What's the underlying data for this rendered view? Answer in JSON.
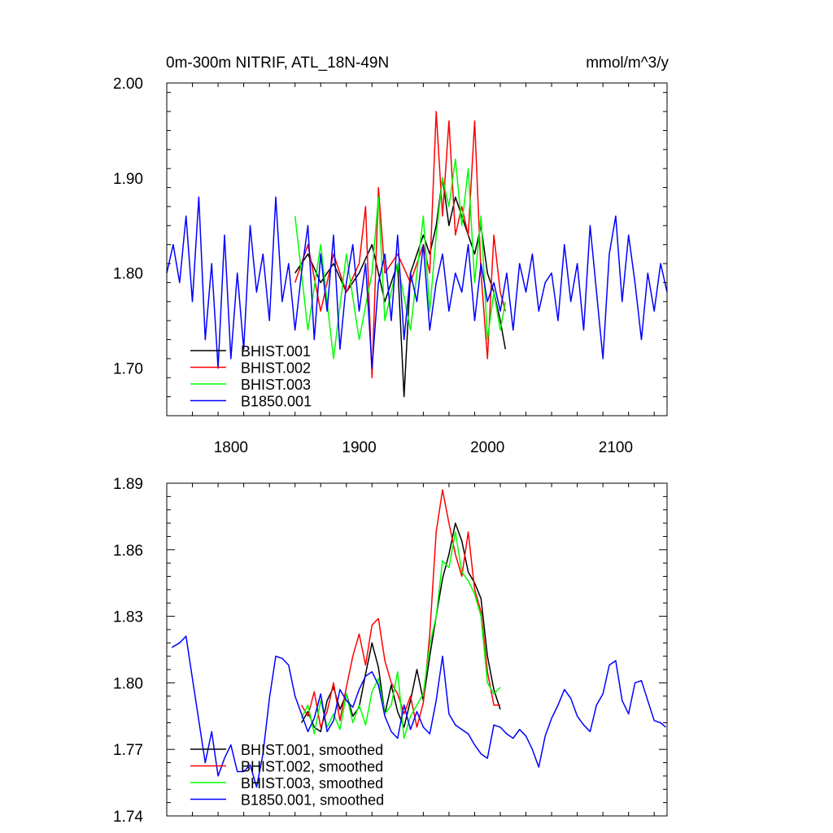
{
  "title_left": "0m-300m NITRIF, ATL_18N-49N",
  "title_right": "mmol/m^3/y",
  "colors": {
    "BHIST.001": "#000000",
    "BHIST.002": "#ff0000",
    "BHIST.003": "#00ff00",
    "B1850.001": "#0000ff"
  },
  "chart_data": [
    {
      "type": "line",
      "title": "0m-300m NITRIF, ATL_18N-49N",
      "units": "mmol/m^3/y",
      "xlim": [
        1750,
        2140
      ],
      "ylim": [
        1.65,
        2.0
      ],
      "x_ticks": [
        1800,
        1900,
        2000,
        2100
      ],
      "x_tick_labels": [
        "1800",
        "1900",
        "2000",
        "2100"
      ],
      "y_ticks": [
        1.7,
        1.8,
        1.9,
        2.0
      ],
      "y_tick_labels": [
        "1.70",
        "1.80",
        "1.90",
        "2.00"
      ],
      "legend": [
        "BHIST.001",
        "BHIST.002",
        "BHIST.003",
        "B1850.001"
      ],
      "legend_position": "bottom-left",
      "series": [
        {
          "name": "BHIST.001",
          "color": "#000000",
          "x": [
            1850,
            1860,
            1870,
            1880,
            1890,
            1900,
            1910,
            1920,
            1930,
            1935,
            1940,
            1950,
            1955,
            1960,
            1965,
            1970,
            1975,
            1980,
            1985,
            1990,
            1995,
            2000,
            2005,
            2010,
            2014
          ],
          "y": [
            1.8,
            1.82,
            1.79,
            1.81,
            1.78,
            1.8,
            1.83,
            1.77,
            1.81,
            1.67,
            1.8,
            1.84,
            1.82,
            1.85,
            1.9,
            1.85,
            1.88,
            1.86,
            1.84,
            1.82,
            1.85,
            1.8,
            1.78,
            1.75,
            1.72
          ]
        },
        {
          "name": "BHIST.002",
          "color": "#ff0000",
          "x": [
            1850,
            1860,
            1870,
            1880,
            1890,
            1900,
            1905,
            1910,
            1915,
            1920,
            1930,
            1940,
            1950,
            1955,
            1960,
            1965,
            1970,
            1975,
            1980,
            1985,
            1990,
            1995,
            2000,
            2005,
            2010,
            2014
          ],
          "y": [
            1.79,
            1.83,
            1.76,
            1.82,
            1.78,
            1.81,
            1.87,
            1.69,
            1.89,
            1.8,
            1.82,
            1.79,
            1.83,
            1.8,
            1.97,
            1.86,
            1.96,
            1.84,
            1.87,
            1.84,
            1.96,
            1.8,
            1.71,
            1.84,
            1.78,
            1.76
          ]
        },
        {
          "name": "BHIST.003",
          "color": "#00ff00",
          "x": [
            1850,
            1860,
            1870,
            1880,
            1890,
            1900,
            1910,
            1915,
            1920,
            1930,
            1940,
            1950,
            1955,
            1960,
            1965,
            1970,
            1975,
            1980,
            1985,
            1990,
            1995,
            2000,
            2005,
            2010,
            2014
          ],
          "y": [
            1.86,
            1.74,
            1.83,
            1.71,
            1.82,
            1.73,
            1.8,
            1.88,
            1.75,
            1.81,
            1.74,
            1.86,
            1.76,
            1.84,
            1.9,
            1.87,
            1.92,
            1.85,
            1.91,
            1.79,
            1.86,
            1.73,
            1.78,
            1.74,
            1.77
          ]
        },
        {
          "name": "B1850.001",
          "color": "#0000ff",
          "x": [
            1750,
            1755,
            1760,
            1765,
            1770,
            1775,
            1780,
            1785,
            1790,
            1795,
            1800,
            1805,
            1810,
            1815,
            1820,
            1825,
            1830,
            1835,
            1840,
            1845,
            1850,
            1855,
            1860,
            1865,
            1870,
            1875,
            1880,
            1885,
            1890,
            1895,
            1900,
            1905,
            1910,
            1915,
            1920,
            1925,
            1930,
            1935,
            1940,
            1945,
            1950,
            1955,
            1960,
            1965,
            1970,
            1975,
            1980,
            1985,
            1990,
            1995,
            2000,
            2005,
            2010,
            2015,
            2020,
            2025,
            2030,
            2035,
            2040,
            2045,
            2050,
            2055,
            2060,
            2065,
            2070,
            2075,
            2080,
            2085,
            2090,
            2095,
            2100,
            2105,
            2110,
            2115,
            2120,
            2125,
            2130,
            2135,
            2140
          ],
          "y": [
            1.8,
            1.83,
            1.79,
            1.86,
            1.77,
            1.88,
            1.73,
            1.81,
            1.7,
            1.84,
            1.71,
            1.8,
            1.72,
            1.85,
            1.78,
            1.82,
            1.75,
            1.88,
            1.77,
            1.81,
            1.74,
            1.8,
            1.85,
            1.73,
            1.82,
            1.76,
            1.84,
            1.72,
            1.79,
            1.83,
            1.76,
            1.81,
            1.7,
            1.79,
            1.82,
            1.75,
            1.84,
            1.73,
            1.8,
            1.77,
            1.83,
            1.74,
            1.79,
            1.82,
            1.76,
            1.8,
            1.78,
            1.83,
            1.75,
            1.81,
            1.77,
            1.79,
            1.76,
            1.8,
            1.74,
            1.81,
            1.78,
            1.82,
            1.76,
            1.79,
            1.8,
            1.75,
            1.83,
            1.77,
            1.81,
            1.74,
            1.85,
            1.78,
            1.71,
            1.82,
            1.86,
            1.77,
            1.84,
            1.79,
            1.73,
            1.8,
            1.76,
            1.81,
            1.78
          ]
        }
      ]
    },
    {
      "type": "line",
      "xlim": [
        1750,
        2140
      ],
      "ylim": [
        1.74,
        1.89
      ],
      "x_ticks": [
        1800,
        1900,
        2000,
        2100
      ],
      "y_ticks": [
        1.74,
        1.77,
        1.8,
        1.83,
        1.86,
        1.89
      ],
      "y_tick_labels": [
        "1.74",
        "1.77",
        "1.80",
        "1.83",
        "1.86",
        "1.89"
      ],
      "legend": [
        "BHIST.001, smoothed",
        "BHIST.002, smoothed",
        "BHIST.003, smoothed",
        "B1850.001, smoothed"
      ],
      "legend_position": "bottom-left",
      "series": [
        {
          "name": "BHIST.001, smoothed",
          "color": "#000000",
          "x": [
            1855,
            1860,
            1865,
            1870,
            1875,
            1880,
            1885,
            1890,
            1895,
            1900,
            1905,
            1910,
            1915,
            1920,
            1925,
            1930,
            1935,
            1940,
            1945,
            1950,
            1955,
            1960,
            1965,
            1970,
            1975,
            1980,
            1985,
            1990,
            1995,
            2000,
            2005,
            2010
          ],
          "y": [
            1.782,
            1.787,
            1.78,
            1.778,
            1.792,
            1.798,
            1.788,
            1.795,
            1.785,
            1.789,
            1.804,
            1.818,
            1.807,
            1.786,
            1.799,
            1.787,
            1.78,
            1.792,
            1.806,
            1.792,
            1.812,
            1.83,
            1.847,
            1.858,
            1.872,
            1.864,
            1.85,
            1.845,
            1.838,
            1.812,
            1.797,
            1.788
          ]
        },
        {
          "name": "BHIST.002, smoothed",
          "color": "#ff0000",
          "x": [
            1855,
            1860,
            1865,
            1870,
            1875,
            1880,
            1885,
            1890,
            1895,
            1900,
            1905,
            1910,
            1915,
            1920,
            1925,
            1930,
            1935,
            1940,
            1945,
            1950,
            1955,
            1960,
            1965,
            1970,
            1975,
            1980,
            1985,
            1990,
            1995,
            2000,
            2005,
            2010
          ],
          "y": [
            1.79,
            1.785,
            1.796,
            1.78,
            1.787,
            1.8,
            1.783,
            1.798,
            1.812,
            1.822,
            1.808,
            1.826,
            1.829,
            1.81,
            1.8,
            1.795,
            1.786,
            1.794,
            1.78,
            1.791,
            1.822,
            1.868,
            1.887,
            1.872,
            1.858,
            1.848,
            1.868,
            1.842,
            1.832,
            1.805,
            1.79,
            1.79
          ]
        },
        {
          "name": "BHIST.003, smoothed",
          "color": "#00ff00",
          "x": [
            1855,
            1860,
            1865,
            1870,
            1875,
            1880,
            1885,
            1890,
            1895,
            1900,
            1905,
            1910,
            1915,
            1920,
            1925,
            1930,
            1935,
            1940,
            1945,
            1950,
            1955,
            1960,
            1965,
            1970,
            1975,
            1980,
            1985,
            1990,
            1995,
            2000,
            2005,
            2010
          ],
          "y": [
            1.784,
            1.79,
            1.777,
            1.792,
            1.78,
            1.786,
            1.779,
            1.795,
            1.782,
            1.79,
            1.781,
            1.796,
            1.802,
            1.786,
            1.79,
            1.805,
            1.775,
            1.785,
            1.79,
            1.795,
            1.817,
            1.83,
            1.855,
            1.852,
            1.868,
            1.85,
            1.846,
            1.84,
            1.83,
            1.8,
            1.795,
            1.798
          ]
        },
        {
          "name": "B1850.001, smoothed",
          "color": "#0000ff",
          "x": [
            1754,
            1760,
            1765,
            1770,
            1775,
            1780,
            1785,
            1790,
            1795,
            1800,
            1805,
            1810,
            1815,
            1820,
            1825,
            1830,
            1835,
            1840,
            1845,
            1850,
            1855,
            1860,
            1865,
            1870,
            1875,
            1880,
            1885,
            1890,
            1895,
            1900,
            1905,
            1910,
            1915,
            1920,
            1925,
            1930,
            1935,
            1940,
            1945,
            1950,
            1955,
            1960,
            1965,
            1970,
            1975,
            1980,
            1985,
            1990,
            1995,
            2000,
            2005,
            2010,
            2015,
            2020,
            2025,
            2030,
            2035,
            2040,
            2045,
            2050,
            2055,
            2060,
            2065,
            2070,
            2075,
            2080,
            2085,
            2090,
            2095,
            2100,
            2105,
            2110,
            2115,
            2120,
            2125,
            2130,
            2135,
            2139
          ],
          "y": [
            1.816,
            1.818,
            1.821,
            1.802,
            1.783,
            1.764,
            1.778,
            1.758,
            1.766,
            1.772,
            1.76,
            1.76,
            1.763,
            1.753,
            1.768,
            1.793,
            1.812,
            1.811,
            1.808,
            1.794,
            1.786,
            1.778,
            1.784,
            1.795,
            1.778,
            1.783,
            1.797,
            1.792,
            1.789,
            1.797,
            1.803,
            1.805,
            1.799,
            1.785,
            1.778,
            1.775,
            1.79,
            1.779,
            1.787,
            1.78,
            1.777,
            1.792,
            1.812,
            1.786,
            1.781,
            1.779,
            1.777,
            1.772,
            1.768,
            1.766,
            1.781,
            1.78,
            1.777,
            1.775,
            1.779,
            1.776,
            1.77,
            1.762,
            1.776,
            1.784,
            1.79,
            1.797,
            1.793,
            1.785,
            1.781,
            1.778,
            1.79,
            1.795,
            1.808,
            1.81,
            1.792,
            1.786,
            1.8,
            1.801,
            1.792,
            1.783,
            1.782,
            1.78
          ]
        }
      ]
    }
  ]
}
